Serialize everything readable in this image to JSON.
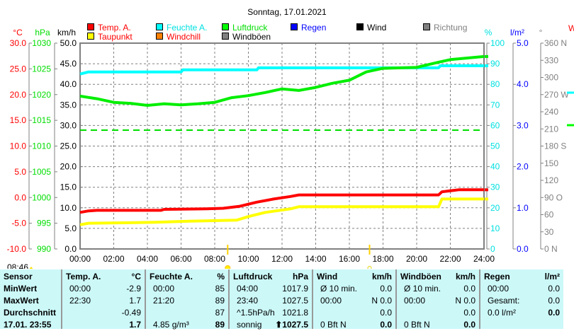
{
  "title": "Sonntag, 17.01.2021",
  "legend": [
    {
      "label": "Temp. A.",
      "color": "#ff0000",
      "text_color": "#ff0000"
    },
    {
      "label": "Feuchte A.",
      "color": "#00ffff",
      "text_color": "#00e0e0"
    },
    {
      "label": "Luftdruck",
      "color": "#00ff00",
      "text_color": "#00dd00"
    },
    {
      "label": "Regen",
      "color": "#0000ff",
      "text_color": "#0000ff"
    },
    {
      "label": "Wind",
      "color": "#000000",
      "text_color": "#000000"
    },
    {
      "label": "Richtung",
      "color": "#808080",
      "text_color": "#808080"
    },
    {
      "label": "Taupunkt",
      "color": "#ffff00",
      "text_color": "#ff0000"
    },
    {
      "label": "Windchill",
      "color": "#ff8000",
      "text_color": "#ff0000"
    },
    {
      "label": "Windböen",
      "color": "#808080",
      "text_color": "#000000"
    }
  ],
  "sun": {
    "sunrise": "08:46",
    "sunrise_hour": 8.77,
    "sunset_hour": 17.2
  },
  "chart_data": {
    "type": "line",
    "title": "Sonntag, 17.01.2021",
    "x_range": [
      0,
      24
    ],
    "x_ticks": [
      "00:00",
      "02:00",
      "04:00",
      "06:00",
      "08:00",
      "10:00",
      "12:00",
      "14:00",
      "16:00",
      "18:00",
      "20:00",
      "22:00",
      "24:00"
    ],
    "axes": {
      "temp": {
        "unit": "°C",
        "range": [
          -10,
          30
        ],
        "ticks": [
          "30.0",
          "25.0",
          "20.0",
          "15.0",
          "10.0",
          "5.0",
          "0.0",
          "-5.0",
          "-10.0"
        ],
        "color": "#ff0000"
      },
      "pressure": {
        "unit": "hPa",
        "range": [
          990,
          1030
        ],
        "ticks": [
          "1030",
          "1025",
          "1020",
          "1015",
          "1010",
          "1005",
          "1000",
          "995",
          "990"
        ],
        "color": "#00dd00"
      },
      "wind": {
        "unit": "km/h",
        "range": [
          0,
          50
        ],
        "ticks": [
          "50.0",
          "45.0",
          "40.0",
          "35.0",
          "30.0",
          "25.0",
          "20.0",
          "15.0",
          "10.0",
          "5.0",
          "0.0"
        ],
        "color": "#000000"
      },
      "humidity": {
        "unit": "%",
        "range": [
          0,
          100
        ],
        "ticks": [
          "100",
          "90",
          "80",
          "70",
          "60",
          "50",
          "40",
          "30",
          "20",
          "10",
          "0"
        ],
        "color": "#00e0e0"
      },
      "rain": {
        "unit": "l/m²",
        "range": [
          0,
          5
        ],
        "ticks": [
          "5.0",
          "4.0",
          "3.0",
          "2.0",
          "1.0",
          "0.0"
        ],
        "color": "#0000ff"
      },
      "direction": {
        "unit": "°",
        "range": [
          0,
          360
        ],
        "ticks": [
          "360 N",
          "330",
          "300",
          "270 W",
          "240",
          "210",
          "180 S",
          "150",
          "120",
          "90  O",
          "60",
          "30",
          "0   N"
        ],
        "color": "#808080"
      }
    },
    "series": [
      {
        "name": "Temp. A.",
        "axis": "temp",
        "color": "#ff0000",
        "points": [
          [
            0,
            -2.9
          ],
          [
            0.5,
            -2.6
          ],
          [
            1,
            -2.5
          ],
          [
            4.8,
            -2.5
          ],
          [
            5,
            -2.3
          ],
          [
            7.5,
            -2.2
          ],
          [
            8.5,
            -2.1
          ],
          [
            9.5,
            -1.7
          ],
          [
            10.5,
            -0.9
          ],
          [
            11.5,
            -0.3
          ],
          [
            12.5,
            0.2
          ],
          [
            13,
            0.5
          ],
          [
            21.3,
            0.5
          ],
          [
            21.5,
            1.1
          ],
          [
            22.5,
            1.5
          ],
          [
            24,
            1.5
          ]
        ]
      },
      {
        "name": "Taupunkt",
        "axis": "temp",
        "color": "#ffff00",
        "points": [
          [
            0,
            -5.3
          ],
          [
            0.5,
            -5.0
          ],
          [
            3,
            -4.9
          ],
          [
            4.5,
            -4.8
          ],
          [
            6.5,
            -4.6
          ],
          [
            9.3,
            -4.4
          ],
          [
            10,
            -3.7
          ],
          [
            11,
            -2.9
          ],
          [
            12.5,
            -2.2
          ],
          [
            13,
            -1.8
          ],
          [
            21.3,
            -1.8
          ],
          [
            21.5,
            -0.3
          ],
          [
            24,
            -0.3
          ]
        ]
      },
      {
        "name": "Feuchte A.",
        "axis": "humidity",
        "color": "#00ffff",
        "points": [
          [
            0,
            85
          ],
          [
            0.5,
            86
          ],
          [
            6,
            86
          ],
          [
            6.1,
            87
          ],
          [
            10.5,
            87
          ],
          [
            10.6,
            88
          ],
          [
            21.3,
            88
          ],
          [
            21.4,
            89
          ],
          [
            24,
            89
          ]
        ]
      },
      {
        "name": "Luftdruck",
        "axis": "pressure",
        "color": "#00ee00",
        "points": [
          [
            0,
            1019.7
          ],
          [
            1,
            1019.2
          ],
          [
            2,
            1018.5
          ],
          [
            3,
            1018.3
          ],
          [
            4,
            1017.9
          ],
          [
            5,
            1018.2
          ],
          [
            6,
            1018.0
          ],
          [
            7,
            1018.2
          ],
          [
            8,
            1018.5
          ],
          [
            9,
            1019.4
          ],
          [
            10,
            1019.8
          ],
          [
            11,
            1020.4
          ],
          [
            12,
            1021.1
          ],
          [
            13,
            1020.8
          ],
          [
            14,
            1021.4
          ],
          [
            15,
            1022.2
          ],
          [
            16,
            1022.8
          ],
          [
            17,
            1024.4
          ],
          [
            18,
            1025.1
          ],
          [
            20,
            1025.3
          ],
          [
            21.3,
            1026.3
          ],
          [
            22,
            1026.8
          ],
          [
            24,
            1027.4
          ]
        ]
      }
    ],
    "reference_line": {
      "axis": "pressure",
      "value": 1013.1,
      "color": "#00dd00"
    }
  },
  "table": {
    "columns": [
      {
        "header": "Sensor",
        "unit": "",
        "rows": [
          [
            "MinWert",
            ""
          ],
          [
            "MaxWert",
            ""
          ],
          [
            "Durchschnitt",
            ""
          ],
          [
            "17.01. 23:55",
            ""
          ]
        ],
        "bold_labels": true
      },
      {
        "header": "Temp. A.",
        "unit": "°C",
        "rows": [
          [
            "00:00",
            "-2.9"
          ],
          [
            "22:30",
            "1.7"
          ],
          [
            "",
            "-0.49"
          ],
          [
            "",
            "1.7"
          ]
        ]
      },
      {
        "header": "Feuchte A.",
        "unit": "%",
        "rows": [
          [
            "00:00",
            "85"
          ],
          [
            "21:20",
            "89"
          ],
          [
            "",
            "87"
          ],
          [
            "4.85 g/m³",
            "89"
          ]
        ]
      },
      {
        "header": "Luftdruck",
        "unit": "hPa",
        "rows": [
          [
            "04:00",
            "1017.9"
          ],
          [
            "23:40",
            "1027.5"
          ],
          [
            "^1.5hPa/h",
            "1021.8"
          ],
          [
            "sonnig",
            "⬆1027.5"
          ]
        ]
      },
      {
        "header": "Wind",
        "unit": "km/h",
        "rows": [
          [
            "Ø 10 min.",
            "0.0"
          ],
          [
            "00:00",
            "N 0.0"
          ],
          [
            "",
            "0.0"
          ],
          [
            "0 Bft N",
            "0.0"
          ]
        ]
      },
      {
        "header": "Windböen",
        "unit": "km/h",
        "rows": [
          [
            "Ø 10 min.",
            "0.0"
          ],
          [
            "00:00",
            "N 0.0"
          ],
          [
            "",
            "0.0"
          ],
          [
            "0 Bft N",
            "0.0"
          ]
        ]
      },
      {
        "header": "Regen",
        "unit": "l/m²",
        "rows": [
          [
            "",
            ""
          ],
          [
            "00:00",
            "0.0"
          ],
          [
            "Gesamt:",
            "0.0"
          ],
          [
            "0.0 l/m²",
            "0.0"
          ]
        ]
      }
    ]
  }
}
